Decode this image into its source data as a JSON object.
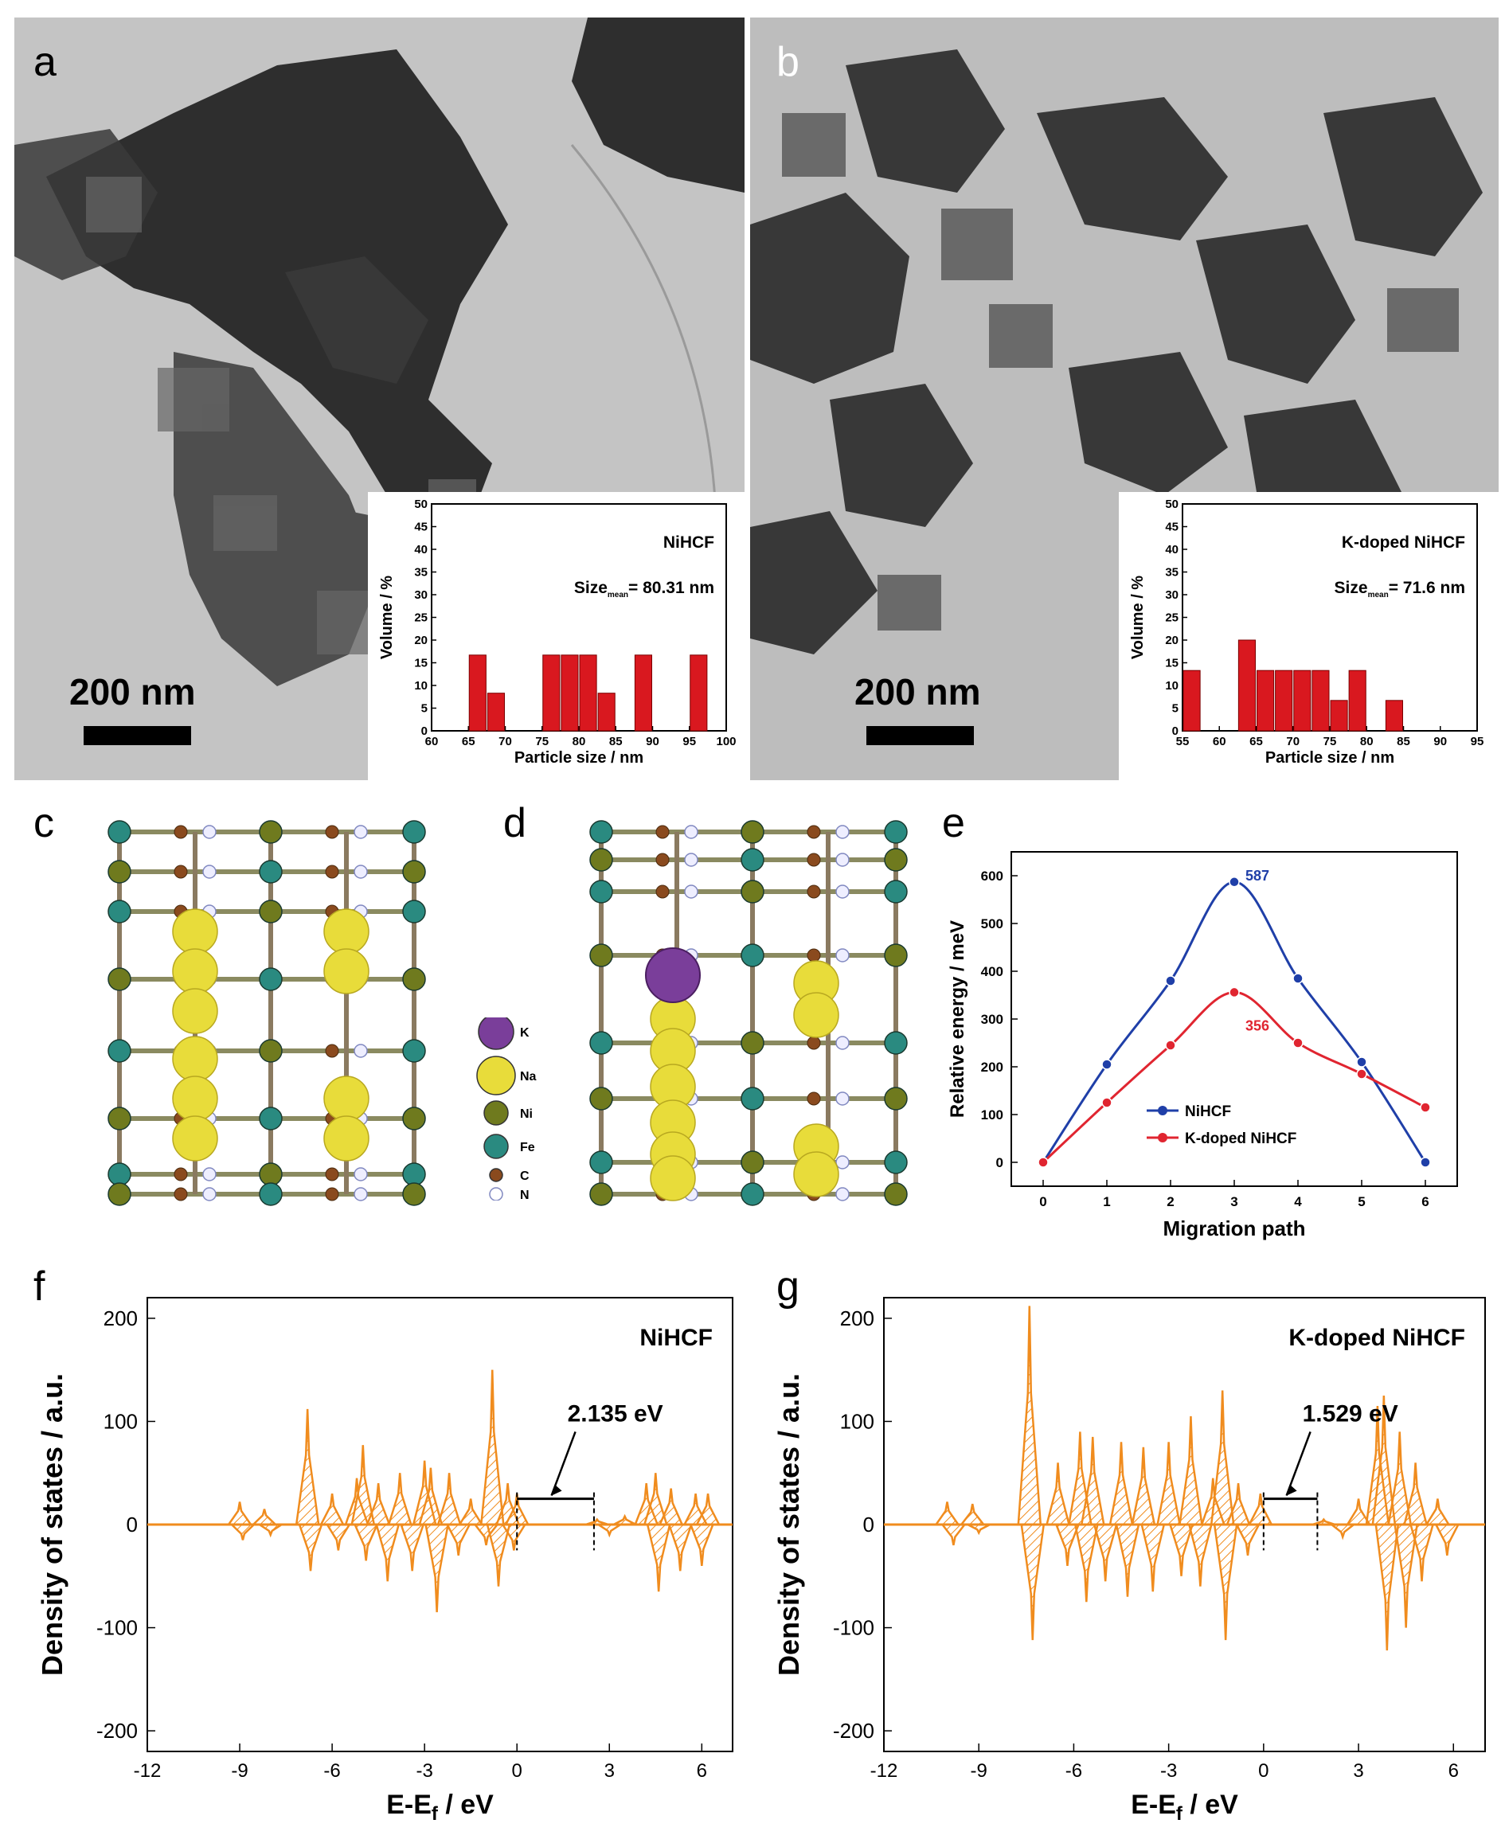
{
  "panels": {
    "a": {
      "label": "a",
      "scale": "200 nm"
    },
    "b": {
      "label": "b",
      "scale": "200 nm"
    },
    "c": {
      "label": "c"
    },
    "d": {
      "label": "d"
    },
    "e": {
      "label": "e"
    },
    "f": {
      "label": "f"
    },
    "g": {
      "label": "g"
    }
  },
  "legend_atoms": [
    {
      "symbol": "K",
      "color": "#7a3e9a"
    },
    {
      "symbol": "Na",
      "color": "#e8dc3a"
    },
    {
      "symbol": "Ni",
      "color": "#6f7a1e"
    },
    {
      "symbol": "Fe",
      "color": "#2a8a80"
    },
    {
      "symbol": "C",
      "color": "#8a4a1e"
    },
    {
      "symbol": "N",
      "color": "#c8cce8"
    }
  ],
  "chart_data": [
    {
      "id": "a-inset",
      "type": "bar",
      "annotation": "NiHCF",
      "size_label": "Size",
      "size_sub": "mean",
      "size_value": "= 80.31 nm",
      "xlabel": "Particle size / nm",
      "ylabel": "Volume / %",
      "xlim": [
        60,
        100
      ],
      "ylim": [
        0,
        50
      ],
      "xticks": [
        60,
        65,
        70,
        75,
        80,
        85,
        90,
        95,
        100
      ],
      "yticks": [
        0,
        5,
        10,
        15,
        20,
        25,
        30,
        35,
        40,
        45,
        50
      ],
      "bar_width": 2.5,
      "bars": [
        {
          "x": 65,
          "value": 16.7
        },
        {
          "x": 67.5,
          "value": 8.3
        },
        {
          "x": 75,
          "value": 16.7
        },
        {
          "x": 77.5,
          "value": 16.7
        },
        {
          "x": 80,
          "value": 16.7
        },
        {
          "x": 82.5,
          "value": 8.3
        },
        {
          "x": 87.5,
          "value": 16.7
        },
        {
          "x": 95,
          "value": 16.7
        }
      ],
      "bar_color": "#d9181f"
    },
    {
      "id": "b-inset",
      "type": "bar",
      "annotation": "K-doped NiHCF",
      "size_label": "Size",
      "size_sub": "mean",
      "size_value": "= 71.6 nm",
      "xlabel": "Particle size / nm",
      "ylabel": "Volume / %",
      "xlim": [
        55,
        95
      ],
      "ylim": [
        0,
        50
      ],
      "xticks": [
        55,
        60,
        65,
        70,
        75,
        80,
        85,
        90,
        95
      ],
      "yticks": [
        0,
        5,
        10,
        15,
        20,
        25,
        30,
        35,
        40,
        45,
        50
      ],
      "bar_width": 2.5,
      "bars": [
        {
          "x": 55,
          "value": 13.3
        },
        {
          "x": 62.5,
          "value": 20
        },
        {
          "x": 65,
          "value": 13.3
        },
        {
          "x": 67.5,
          "value": 13.3
        },
        {
          "x": 70,
          "value": 13.3
        },
        {
          "x": 72.5,
          "value": 13.3
        },
        {
          "x": 75,
          "value": 6.7
        },
        {
          "x": 77.5,
          "value": 13.3
        },
        {
          "x": 82.5,
          "value": 6.7
        }
      ],
      "bar_color": "#d9181f"
    },
    {
      "id": "e",
      "type": "line",
      "xlabel": "Migration path",
      "ylabel": "Relative energy / meV",
      "xlim": [
        -0.5,
        6.5
      ],
      "ylim": [
        -50,
        650
      ],
      "xticks": [
        0,
        1,
        2,
        3,
        4,
        5,
        6
      ],
      "yticks": [
        0,
        100,
        200,
        300,
        400,
        500,
        600
      ],
      "series": [
        {
          "name": "NiHCF",
          "color": "#1f3fa8",
          "x": [
            0,
            1,
            2,
            3,
            4,
            5,
            6
          ],
          "y": [
            0,
            205,
            380,
            587,
            385,
            210,
            0
          ],
          "peak_label": "587"
        },
        {
          "name": "K-doped NiHCF",
          "color": "#e02530",
          "x": [
            0,
            1,
            2,
            3,
            4,
            5,
            6
          ],
          "y": [
            0,
            125,
            245,
            356,
            250,
            185,
            115
          ],
          "peak_label": "356"
        }
      ],
      "legend": "center"
    },
    {
      "id": "f",
      "type": "area",
      "annotation": "NiHCF",
      "gap_label": "2.135 eV",
      "gap": [
        0,
        2.5
      ],
      "xlabel": "E-Ef / eV",
      "xlabel_main": "E-E",
      "xlabel_sub": "f",
      "xlabel_tail": " / eV",
      "ylabel": "Density of states / a.u.",
      "xlim": [
        -12,
        7
      ],
      "ylim": [
        -220,
        220
      ],
      "xticks": [
        -12,
        -9,
        -6,
        -3,
        0,
        3,
        6
      ],
      "yticks": [
        -200,
        -100,
        0,
        100,
        200
      ],
      "color": "#f08c1e",
      "peaks": [
        {
          "x": -9.0,
          "y": 22
        },
        {
          "x": -8.9,
          "y": -15
        },
        {
          "x": -8.2,
          "y": 15
        },
        {
          "x": -8.0,
          "y": -10
        },
        {
          "x": -6.8,
          "y": 112
        },
        {
          "x": -6.7,
          "y": -45
        },
        {
          "x": -6.0,
          "y": 30
        },
        {
          "x": -5.8,
          "y": -25
        },
        {
          "x": -5.2,
          "y": 45
        },
        {
          "x": -5.0,
          "y": 77
        },
        {
          "x": -4.9,
          "y": -35
        },
        {
          "x": -4.5,
          "y": 40
        },
        {
          "x": -4.2,
          "y": -55
        },
        {
          "x": -3.8,
          "y": 50
        },
        {
          "x": -3.4,
          "y": -45
        },
        {
          "x": -3.0,
          "y": 62
        },
        {
          "x": -2.8,
          "y": 55
        },
        {
          "x": -2.6,
          "y": -85
        },
        {
          "x": -2.2,
          "y": 50
        },
        {
          "x": -1.9,
          "y": -30
        },
        {
          "x": -1.5,
          "y": 25
        },
        {
          "x": -1.0,
          "y": -20
        },
        {
          "x": -0.8,
          "y": 150
        },
        {
          "x": -0.6,
          "y": -60
        },
        {
          "x": -0.3,
          "y": 40
        },
        {
          "x": -0.1,
          "y": -25
        },
        {
          "x": 0.0,
          "y": 30
        },
        {
          "x": 2.6,
          "y": 5
        },
        {
          "x": 3.0,
          "y": -10
        },
        {
          "x": 3.5,
          "y": 8
        },
        {
          "x": 4.2,
          "y": 40
        },
        {
          "x": 4.5,
          "y": 50
        },
        {
          "x": 4.6,
          "y": -65
        },
        {
          "x": 5.0,
          "y": 35
        },
        {
          "x": 5.3,
          "y": -45
        },
        {
          "x": 5.8,
          "y": 30
        },
        {
          "x": 6.0,
          "y": -40
        },
        {
          "x": 6.2,
          "y": 30
        }
      ]
    },
    {
      "id": "g",
      "type": "area",
      "annotation": "K-doped NiHCF",
      "gap_label": "1.529 eV",
      "gap": [
        0,
        1.7
      ],
      "xlabel": "E-Ef / eV",
      "xlabel_main": "E-E",
      "xlabel_sub": "f",
      "xlabel_tail": " / eV",
      "ylabel": "Density of states / a.u.",
      "xlim": [
        -12,
        7
      ],
      "ylim": [
        -220,
        220
      ],
      "xticks": [
        -12,
        -9,
        -6,
        -3,
        0,
        3,
        6
      ],
      "yticks": [
        -200,
        -100,
        0,
        100,
        200
      ],
      "color": "#f08c1e",
      "peaks": [
        {
          "x": -10.0,
          "y": 22
        },
        {
          "x": -9.8,
          "y": -20
        },
        {
          "x": -9.2,
          "y": 20
        },
        {
          "x": -9.0,
          "y": -8
        },
        {
          "x": -7.4,
          "y": 212
        },
        {
          "x": -7.3,
          "y": -112
        },
        {
          "x": -6.5,
          "y": 60
        },
        {
          "x": -6.2,
          "y": -40
        },
        {
          "x": -5.8,
          "y": 90
        },
        {
          "x": -5.6,
          "y": -75
        },
        {
          "x": -5.4,
          "y": 85
        },
        {
          "x": -5.0,
          "y": -55
        },
        {
          "x": -4.5,
          "y": 80
        },
        {
          "x": -4.3,
          "y": -70
        },
        {
          "x": -3.8,
          "y": 75
        },
        {
          "x": -3.5,
          "y": -65
        },
        {
          "x": -3.0,
          "y": 80
        },
        {
          "x": -2.6,
          "y": -50
        },
        {
          "x": -2.3,
          "y": 105
        },
        {
          "x": -2.0,
          "y": -60
        },
        {
          "x": -1.6,
          "y": 45
        },
        {
          "x": -1.3,
          "y": 130
        },
        {
          "x": -1.2,
          "y": -112
        },
        {
          "x": -0.8,
          "y": 40
        },
        {
          "x": -0.5,
          "y": -30
        },
        {
          "x": -0.1,
          "y": 30
        },
        {
          "x": 1.9,
          "y": 5
        },
        {
          "x": 2.5,
          "y": -12
        },
        {
          "x": 3.0,
          "y": 25
        },
        {
          "x": 3.6,
          "y": 115
        },
        {
          "x": 3.8,
          "y": 125
        },
        {
          "x": 3.9,
          "y": -122
        },
        {
          "x": 4.3,
          "y": 90
        },
        {
          "x": 4.5,
          "y": -100
        },
        {
          "x": 4.8,
          "y": 60
        },
        {
          "x": 5.0,
          "y": -55
        },
        {
          "x": 5.5,
          "y": 25
        },
        {
          "x": 5.8,
          "y": -30
        }
      ]
    }
  ]
}
